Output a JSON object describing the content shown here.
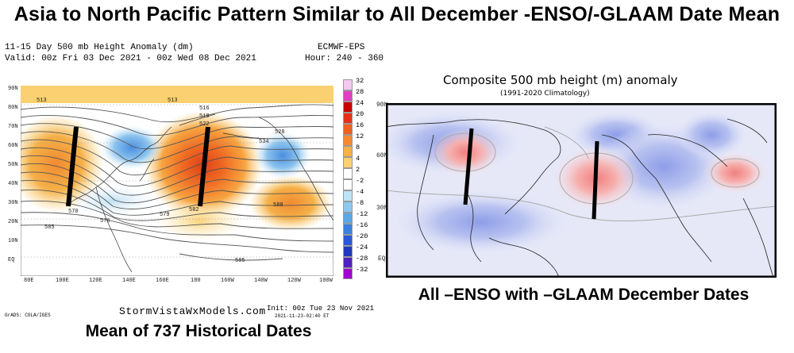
{
  "title": "Asia to North Pacific Pattern Similar to All December -ENSO/-GLAAM Date Mean",
  "left_panel": {
    "header_line1": "11-15 Day 500 mb Height Anomaly (dm)",
    "header_line2": "Valid: 00z Fri 03 Dec 2021 - 00z Wed 08 Dec 2021",
    "model": "ECMWF-EPS",
    "hours": "Hour: 240 - 360",
    "lat_labels": [
      "90N",
      "80N",
      "70N",
      "60N",
      "50N",
      "40N",
      "30N",
      "20N",
      "10N",
      "EQ"
    ],
    "lon_labels": [
      "80E",
      "100E",
      "120E",
      "140E",
      "160E",
      "180",
      "160W",
      "140W",
      "120W",
      "100W"
    ],
    "contour_labels": [
      "513",
      "516",
      "519",
      "522",
      "525",
      "528",
      "534",
      "570",
      "573",
      "576",
      "579",
      "582",
      "585",
      "588"
    ],
    "colorbar": [
      "32",
      "28",
      "24",
      "20",
      "16",
      "12",
      "8",
      "4",
      "2",
      "-2",
      "-4",
      "-8",
      "-12",
      "-16",
      "-20",
      "-24",
      "-28",
      "-32"
    ],
    "colorbar_colors": [
      "#f5c8f0",
      "#e040c0",
      "#c80000",
      "#e83018",
      "#f06020",
      "#f58a30",
      "#f8b048",
      "#fad070",
      "#ffffff",
      "#ffffff",
      "#bde3f5",
      "#8cc8f0",
      "#5aa8e8",
      "#3a80e0",
      "#2a58d8",
      "#2038c0",
      "#5020c0",
      "#a000d0"
    ],
    "credit_left": "GrADS: COLA/IGES",
    "source": "StormVistaWxModels.com",
    "init": "Init: 00z Tue 23 Nov 2021",
    "init_sub": "2021-11-23-02:40 ET"
  },
  "right_panel": {
    "title": "Composite 500 mb height (m) anomaly",
    "subtitle": "(1991-2020 Climatology)",
    "lat_labels": [
      "90N",
      "60N",
      "30N",
      "EQ"
    ],
    "caption": "All –ENSO with –GLAAM December Dates"
  },
  "bottom_caption": "Mean of 737 Historical Dates"
}
